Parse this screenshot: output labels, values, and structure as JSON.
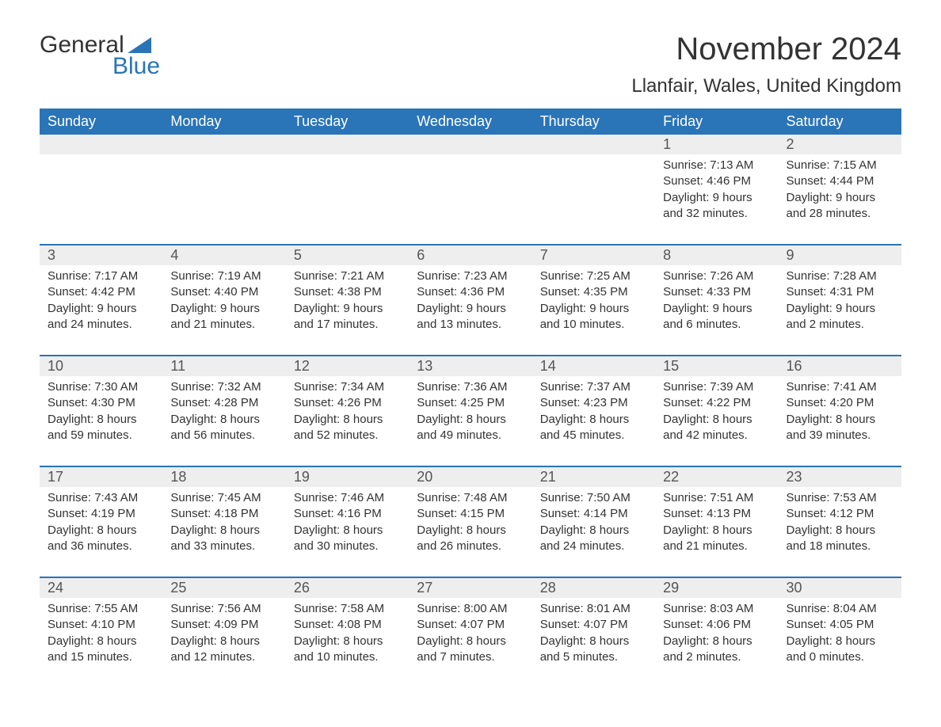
{
  "logo": {
    "word1": "General",
    "word2": "Blue"
  },
  "title": "November 2024",
  "location": "Llanfair, Wales, United Kingdom",
  "colors": {
    "brand_blue": "#2a74b8",
    "header_text": "#ffffff",
    "daynum_bg": "#eeeeee",
    "body_text": "#333333",
    "page_bg": "#ffffff"
  },
  "day_headers": [
    "Sunday",
    "Monday",
    "Tuesday",
    "Wednesday",
    "Thursday",
    "Friday",
    "Saturday"
  ],
  "weeks": [
    [
      null,
      null,
      null,
      null,
      null,
      {
        "n": "1",
        "sunrise": "Sunrise: 7:13 AM",
        "sunset": "Sunset: 4:46 PM",
        "d1": "Daylight: 9 hours",
        "d2": "and 32 minutes."
      },
      {
        "n": "2",
        "sunrise": "Sunrise: 7:15 AM",
        "sunset": "Sunset: 4:44 PM",
        "d1": "Daylight: 9 hours",
        "d2": "and 28 minutes."
      }
    ],
    [
      {
        "n": "3",
        "sunrise": "Sunrise: 7:17 AM",
        "sunset": "Sunset: 4:42 PM",
        "d1": "Daylight: 9 hours",
        "d2": "and 24 minutes."
      },
      {
        "n": "4",
        "sunrise": "Sunrise: 7:19 AM",
        "sunset": "Sunset: 4:40 PM",
        "d1": "Daylight: 9 hours",
        "d2": "and 21 minutes."
      },
      {
        "n": "5",
        "sunrise": "Sunrise: 7:21 AM",
        "sunset": "Sunset: 4:38 PM",
        "d1": "Daylight: 9 hours",
        "d2": "and 17 minutes."
      },
      {
        "n": "6",
        "sunrise": "Sunrise: 7:23 AM",
        "sunset": "Sunset: 4:36 PM",
        "d1": "Daylight: 9 hours",
        "d2": "and 13 minutes."
      },
      {
        "n": "7",
        "sunrise": "Sunrise: 7:25 AM",
        "sunset": "Sunset: 4:35 PM",
        "d1": "Daylight: 9 hours",
        "d2": "and 10 minutes."
      },
      {
        "n": "8",
        "sunrise": "Sunrise: 7:26 AM",
        "sunset": "Sunset: 4:33 PM",
        "d1": "Daylight: 9 hours",
        "d2": "and 6 minutes."
      },
      {
        "n": "9",
        "sunrise": "Sunrise: 7:28 AM",
        "sunset": "Sunset: 4:31 PM",
        "d1": "Daylight: 9 hours",
        "d2": "and 2 minutes."
      }
    ],
    [
      {
        "n": "10",
        "sunrise": "Sunrise: 7:30 AM",
        "sunset": "Sunset: 4:30 PM",
        "d1": "Daylight: 8 hours",
        "d2": "and 59 minutes."
      },
      {
        "n": "11",
        "sunrise": "Sunrise: 7:32 AM",
        "sunset": "Sunset: 4:28 PM",
        "d1": "Daylight: 8 hours",
        "d2": "and 56 minutes."
      },
      {
        "n": "12",
        "sunrise": "Sunrise: 7:34 AM",
        "sunset": "Sunset: 4:26 PM",
        "d1": "Daylight: 8 hours",
        "d2": "and 52 minutes."
      },
      {
        "n": "13",
        "sunrise": "Sunrise: 7:36 AM",
        "sunset": "Sunset: 4:25 PM",
        "d1": "Daylight: 8 hours",
        "d2": "and 49 minutes."
      },
      {
        "n": "14",
        "sunrise": "Sunrise: 7:37 AM",
        "sunset": "Sunset: 4:23 PM",
        "d1": "Daylight: 8 hours",
        "d2": "and 45 minutes."
      },
      {
        "n": "15",
        "sunrise": "Sunrise: 7:39 AM",
        "sunset": "Sunset: 4:22 PM",
        "d1": "Daylight: 8 hours",
        "d2": "and 42 minutes."
      },
      {
        "n": "16",
        "sunrise": "Sunrise: 7:41 AM",
        "sunset": "Sunset: 4:20 PM",
        "d1": "Daylight: 8 hours",
        "d2": "and 39 minutes."
      }
    ],
    [
      {
        "n": "17",
        "sunrise": "Sunrise: 7:43 AM",
        "sunset": "Sunset: 4:19 PM",
        "d1": "Daylight: 8 hours",
        "d2": "and 36 minutes."
      },
      {
        "n": "18",
        "sunrise": "Sunrise: 7:45 AM",
        "sunset": "Sunset: 4:18 PM",
        "d1": "Daylight: 8 hours",
        "d2": "and 33 minutes."
      },
      {
        "n": "19",
        "sunrise": "Sunrise: 7:46 AM",
        "sunset": "Sunset: 4:16 PM",
        "d1": "Daylight: 8 hours",
        "d2": "and 30 minutes."
      },
      {
        "n": "20",
        "sunrise": "Sunrise: 7:48 AM",
        "sunset": "Sunset: 4:15 PM",
        "d1": "Daylight: 8 hours",
        "d2": "and 26 minutes."
      },
      {
        "n": "21",
        "sunrise": "Sunrise: 7:50 AM",
        "sunset": "Sunset: 4:14 PM",
        "d1": "Daylight: 8 hours",
        "d2": "and 24 minutes."
      },
      {
        "n": "22",
        "sunrise": "Sunrise: 7:51 AM",
        "sunset": "Sunset: 4:13 PM",
        "d1": "Daylight: 8 hours",
        "d2": "and 21 minutes."
      },
      {
        "n": "23",
        "sunrise": "Sunrise: 7:53 AM",
        "sunset": "Sunset: 4:12 PM",
        "d1": "Daylight: 8 hours",
        "d2": "and 18 minutes."
      }
    ],
    [
      {
        "n": "24",
        "sunrise": "Sunrise: 7:55 AM",
        "sunset": "Sunset: 4:10 PM",
        "d1": "Daylight: 8 hours",
        "d2": "and 15 minutes."
      },
      {
        "n": "25",
        "sunrise": "Sunrise: 7:56 AM",
        "sunset": "Sunset: 4:09 PM",
        "d1": "Daylight: 8 hours",
        "d2": "and 12 minutes."
      },
      {
        "n": "26",
        "sunrise": "Sunrise: 7:58 AM",
        "sunset": "Sunset: 4:08 PM",
        "d1": "Daylight: 8 hours",
        "d2": "and 10 minutes."
      },
      {
        "n": "27",
        "sunrise": "Sunrise: 8:00 AM",
        "sunset": "Sunset: 4:07 PM",
        "d1": "Daylight: 8 hours",
        "d2": "and 7 minutes."
      },
      {
        "n": "28",
        "sunrise": "Sunrise: 8:01 AM",
        "sunset": "Sunset: 4:07 PM",
        "d1": "Daylight: 8 hours",
        "d2": "and 5 minutes."
      },
      {
        "n": "29",
        "sunrise": "Sunrise: 8:03 AM",
        "sunset": "Sunset: 4:06 PM",
        "d1": "Daylight: 8 hours",
        "d2": "and 2 minutes."
      },
      {
        "n": "30",
        "sunrise": "Sunrise: 8:04 AM",
        "sunset": "Sunset: 4:05 PM",
        "d1": "Daylight: 8 hours",
        "d2": "and 0 minutes."
      }
    ]
  ]
}
